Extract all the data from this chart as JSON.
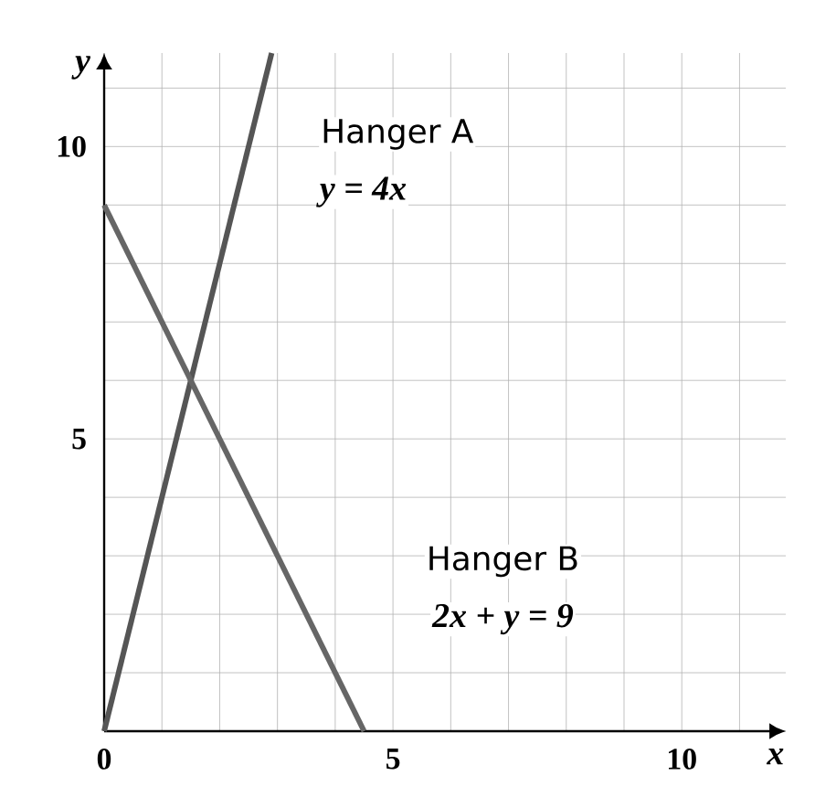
{
  "chart_data": {
    "type": "line",
    "xlabel": "*x*",
    "ylabel": "*y*",
    "xlim": [
      0,
      11.8
    ],
    "ylim": [
      0,
      11.6
    ],
    "xticks": [
      {
        "value": 0,
        "label": "0"
      },
      {
        "value": 1,
        "label": null
      },
      {
        "value": 2,
        "label": null
      },
      {
        "value": 3,
        "label": null
      },
      {
        "value": 4,
        "label": null
      },
      {
        "value": 5,
        "label": "5"
      },
      {
        "value": 6,
        "label": null
      },
      {
        "value": 7,
        "label": null
      },
      {
        "value": 8,
        "label": null
      },
      {
        "value": 9,
        "label": null
      },
      {
        "value": 10,
        "label": "10"
      },
      {
        "value": 11,
        "label": null
      }
    ],
    "yticks": [
      {
        "value": 0,
        "label": null
      },
      {
        "value": 1,
        "label": null
      },
      {
        "value": 2,
        "label": null
      },
      {
        "value": 3,
        "label": null
      },
      {
        "value": 4,
        "label": null
      },
      {
        "value": 5,
        "label": "5"
      },
      {
        "value": 6,
        "label": null
      },
      {
        "value": 7,
        "label": null
      },
      {
        "value": 8,
        "label": null
      },
      {
        "value": 9,
        "label": null
      },
      {
        "value": 10,
        "label": "10"
      },
      {
        "value": 11,
        "label": null
      }
    ],
    "grid": true,
    "marker": "none",
    "line_style": "solid",
    "series": [
      {
        "color": "#555555",
        "x": [
          0,
          2.9
        ],
        "values": [
          0,
          11.6
        ]
      },
      {
        "color": "#666666",
        "x": [
          0,
          4.5
        ],
        "values": [
          9,
          0
        ]
      }
    ],
    "annotations": [
      "Hanger A",
      "y = 4x",
      "Hanger B",
      "2x + y = 9"
    ]
  }
}
